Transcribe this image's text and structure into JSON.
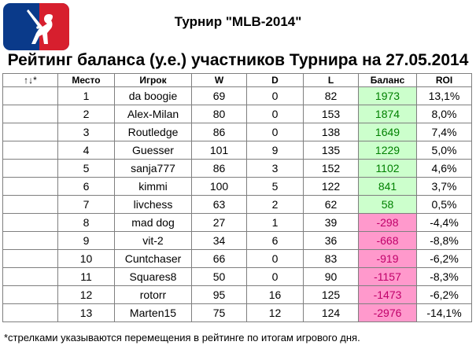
{
  "header": {
    "title": "Турнир \"MLB-2014\"",
    "subtitle": "Рейтинг баланса (у.е.) участников Турнира на 27.05.2014"
  },
  "table": {
    "columns": [
      "↑↓*",
      "Место",
      "Игрок",
      "W",
      "D",
      "L",
      "Баланс",
      "ROI"
    ],
    "rows": [
      {
        "arrow": "",
        "place": "1",
        "player": "da boogie",
        "w": "69",
        "d": "0",
        "l": "82",
        "balance": "1973",
        "roi": "13,1%"
      },
      {
        "arrow": "",
        "place": "2",
        "player": "Alex-Milan",
        "w": "80",
        "d": "0",
        "l": "153",
        "balance": "1874",
        "roi": "8,0%"
      },
      {
        "arrow": "",
        "place": "3",
        "player": "Routledge",
        "w": "86",
        "d": "0",
        "l": "138",
        "balance": "1649",
        "roi": "7,4%"
      },
      {
        "arrow": "",
        "place": "4",
        "player": "Guesser",
        "w": "101",
        "d": "9",
        "l": "135",
        "balance": "1229",
        "roi": "5,0%"
      },
      {
        "arrow": "",
        "place": "5",
        "player": "sanja777",
        "w": "86",
        "d": "3",
        "l": "152",
        "balance": "1102",
        "roi": "4,6%"
      },
      {
        "arrow": "",
        "place": "6",
        "player": "kimmi",
        "w": "100",
        "d": "5",
        "l": "122",
        "balance": "841",
        "roi": "3,7%"
      },
      {
        "arrow": "",
        "place": "7",
        "player": "livchess",
        "w": "63",
        "d": "2",
        "l": "62",
        "balance": "58",
        "roi": "0,5%"
      },
      {
        "arrow": "",
        "place": "8",
        "player": "mad dog",
        "w": "27",
        "d": "1",
        "l": "39",
        "balance": "-298",
        "roi": "-4,4%"
      },
      {
        "arrow": "",
        "place": "9",
        "player": "vit-2",
        "w": "34",
        "d": "6",
        "l": "36",
        "balance": "-668",
        "roi": "-8,8%"
      },
      {
        "arrow": "",
        "place": "10",
        "player": "Cuntchaser",
        "w": "66",
        "d": "0",
        "l": "83",
        "balance": "-919",
        "roi": "-6,2%"
      },
      {
        "arrow": "",
        "place": "11",
        "player": "Squares8",
        "w": "50",
        "d": "0",
        "l": "90",
        "balance": "-1157",
        "roi": "-8,3%"
      },
      {
        "arrow": "",
        "place": "12",
        "player": "rotorr",
        "w": "95",
        "d": "16",
        "l": "125",
        "balance": "-1473",
        "roi": "-6,2%"
      },
      {
        "arrow": "",
        "place": "13",
        "player": "Marten15",
        "w": "75",
        "d": "12",
        "l": "124",
        "balance": "-2976",
        "roi": "-14,1%"
      }
    ]
  },
  "footnote": "*стрелками указываются перемещения в рейтинге по итогам игрового дня.",
  "colors": {
    "logo_blue": "#0a3a8a",
    "logo_red": "#d71f2e",
    "positive_balance": "#ccffcc",
    "negative_balance": "#ff99cc",
    "positive_text": "#008000",
    "negative_text": "#c0006a"
  },
  "icons": {
    "logo": "mlb-logo-icon"
  }
}
